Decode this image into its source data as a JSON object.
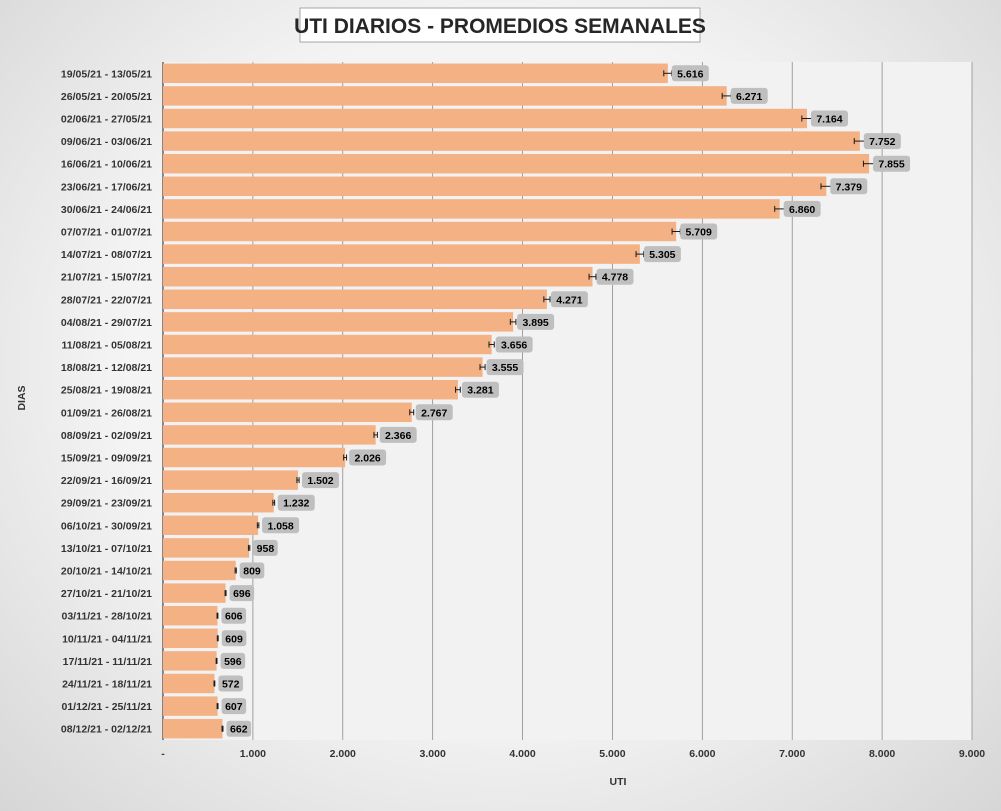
{
  "colors": {
    "bar": "#f4b183",
    "label_bg": "#bfbfbf",
    "plot_bg": "#f2f2f2",
    "grid": "#8c8c8c"
  },
  "chart_data": {
    "type": "bar",
    "orientation": "horizontal",
    "title": "UTI DIARIOS - PROMEDIOS SEMANALES",
    "xlabel": "UTI",
    "ylabel": "DIAS",
    "xlim": [
      0,
      9000
    ],
    "x_ticks": [
      "-",
      "1.000",
      "2.000",
      "3.000",
      "4.000",
      "5.000",
      "6.000",
      "7.000",
      "8.000",
      "9.000"
    ],
    "grid": true,
    "error_bars": true,
    "categories": [
      "19/05/21 - 13/05/21",
      "26/05/21 - 20/05/21",
      "02/06/21 - 27/05/21",
      "09/06/21 - 03/06/21",
      "16/06/21 - 10/06/21",
      "23/06/21 - 17/06/21",
      "30/06/21 - 24/06/21",
      "07/07/21 - 01/07/21",
      "14/07/21 - 08/07/21",
      "21/07/21 - 15/07/21",
      "28/07/21 - 22/07/21",
      "04/08/21 - 29/07/21",
      "11/08/21 - 05/08/21",
      "18/08/21 - 12/08/21",
      "25/08/21 - 19/08/21",
      "01/09/21 - 26/08/21",
      "08/09/21 - 02/09/21",
      "15/09/21 - 09/09/21",
      "22/09/21 - 16/09/21",
      "29/09/21 - 23/09/21",
      "06/10/21 - 30/09/21",
      "13/10/21 - 07/10/21",
      "20/10/21 - 14/10/21",
      "27/10/21 - 21/10/21",
      "03/11/21 - 28/10/21",
      "10/11/21 - 04/11/21",
      "17/11/21 - 11/11/21",
      "24/11/21 - 18/11/21",
      "01/12/21 - 25/11/21",
      "08/12/21 - 02/12/21"
    ],
    "values": [
      5616,
      6271,
      7164,
      7752,
      7855,
      7379,
      6860,
      5709,
      5305,
      4778,
      4271,
      3895,
      3656,
      3555,
      3281,
      2767,
      2366,
      2026,
      1502,
      1232,
      1058,
      958,
      809,
      696,
      606,
      609,
      596,
      572,
      607,
      662
    ],
    "value_labels": [
      "5.616",
      "6.271",
      "7.164",
      "7.752",
      "7.855",
      "7.379",
      "6.860",
      "5.709",
      "5.305",
      "4.778",
      "4.271",
      "3.895",
      "3.656",
      "3.555",
      "3.281",
      "2.767",
      "2.366",
      "2.026",
      "1.502",
      "1.232",
      "1.058",
      "958",
      "809",
      "696",
      "606",
      "609",
      "596",
      "572",
      "607",
      "662"
    ]
  }
}
